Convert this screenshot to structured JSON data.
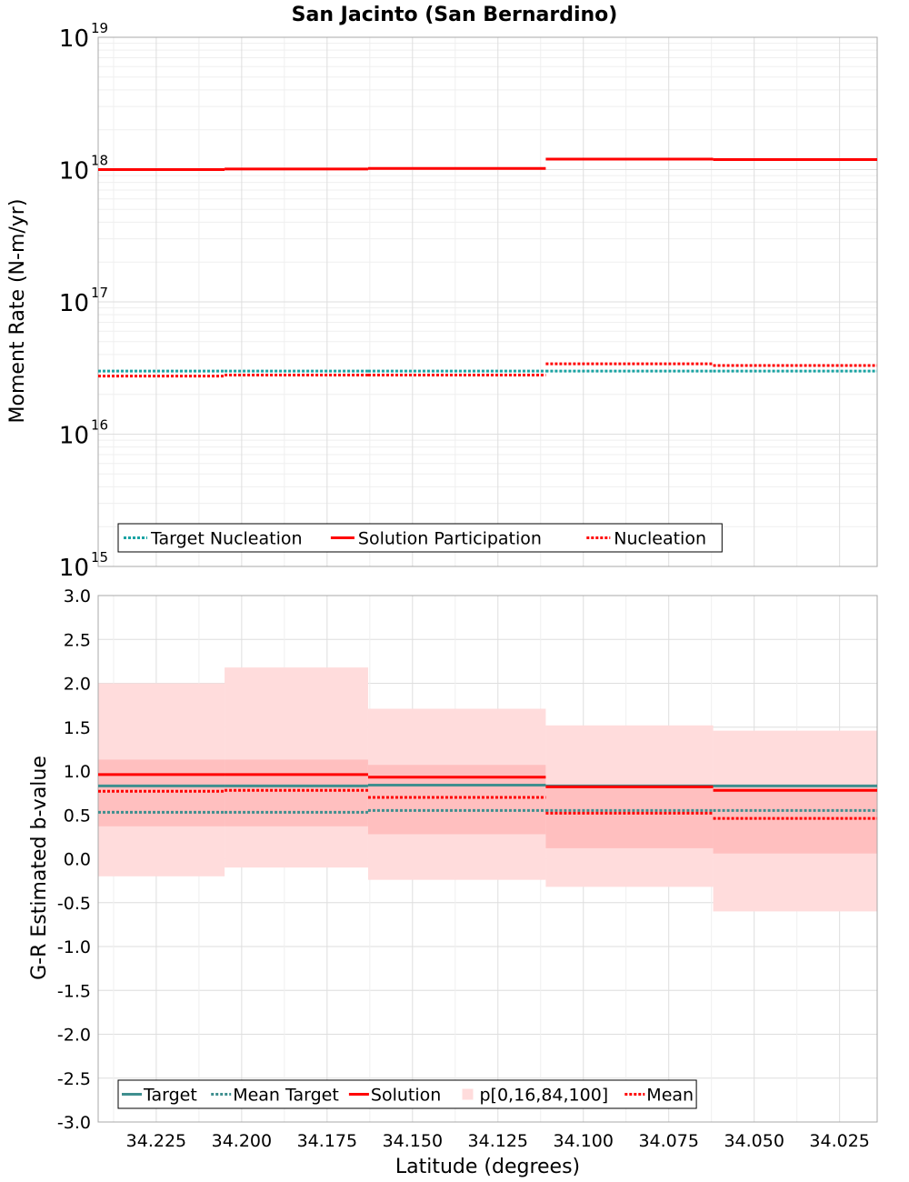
{
  "title": "San Jacinto (San Bernardino)",
  "colors": {
    "target": "#1aa3a3",
    "target_dark": "#3f8f8f",
    "solution": "#ff0000",
    "band_outer": "#ffdcdc",
    "band_inner": "#ffbfbf",
    "grid_major": "#dedede",
    "grid_minor": "#efefef",
    "frame": "#a8a8a8"
  },
  "chart_data": [
    {
      "type": "line",
      "panel": "top",
      "xlabel": "Latitude (degrees)",
      "ylabel": "Moment Rate (N-m/yr)",
      "xlim": [
        34.242,
        34.014
      ],
      "x_reversed": true,
      "x_ticks": [
        "34.225",
        "34.200",
        "34.175",
        "34.150",
        "34.125",
        "34.100",
        "34.075",
        "34.050",
        "34.025"
      ],
      "y_scale": "log",
      "ylim": [
        1000000000000000.0,
        1e+19
      ],
      "y_tick_exponents": [
        15,
        16,
        17,
        18,
        19
      ],
      "y_tick_base": "10",
      "grid": true,
      "legend_position": "bottom-left",
      "segments": [
        {
          "x0": 34.242,
          "x1": 34.205
        },
        {
          "x0": 34.205,
          "x1": 34.163
        },
        {
          "x0": 34.163,
          "x1": 34.111
        },
        {
          "x0": 34.111,
          "x1": 34.062
        },
        {
          "x0": 34.062,
          "x1": 34.014
        }
      ],
      "series": [
        {
          "name": "Target Nucleation",
          "style": "dotted",
          "color": "#1aa3a3",
          "values": [
            3e+16,
            3e+16,
            3e+16,
            3e+16,
            3e+16
          ]
        },
        {
          "name": "Solution Participation",
          "style": "solid",
          "color": "#ff0000",
          "values": [
            1e+18,
            1.01e+18,
            1.02e+18,
            1.2e+18,
            1.19e+18
          ]
        },
        {
          "name": "Nucleation",
          "style": "dotted",
          "color": "#ff0000",
          "values": [
            2.75e+16,
            2.8e+16,
            2.8e+16,
            3.4e+16,
            3.3e+16
          ]
        }
      ],
      "legend": [
        "Target Nucleation",
        "Solution Participation",
        "Nucleation"
      ]
    },
    {
      "type": "line",
      "panel": "bottom",
      "xlabel": "Latitude (degrees)",
      "ylabel": "G-R Estimated b-value",
      "xlim": [
        34.242,
        34.014
      ],
      "x_reversed": true,
      "x_ticks": [
        "34.225",
        "34.200",
        "34.175",
        "34.150",
        "34.125",
        "34.100",
        "34.075",
        "34.050",
        "34.025"
      ],
      "ylim": [
        -3.0,
        3.0
      ],
      "y_ticks": [
        "3.0",
        "2.5",
        "2.0",
        "1.5",
        "1.0",
        "0.5",
        "0.0",
        "-0.5",
        "-1.0",
        "-1.5",
        "-2.0",
        "-2.5",
        "-3.0"
      ],
      "grid": true,
      "legend_position": "bottom-left",
      "segments": [
        {
          "x0": 34.242,
          "x1": 34.205
        },
        {
          "x0": 34.205,
          "x1": 34.163
        },
        {
          "x0": 34.163,
          "x1": 34.111
        },
        {
          "x0": 34.111,
          "x1": 34.062
        },
        {
          "x0": 34.062,
          "x1": 34.014
        }
      ],
      "bands": {
        "name": "p[0,16,84,100]",
        "p0": [
          -0.2,
          -0.1,
          -0.24,
          -0.32,
          -0.6
        ],
        "p16": [
          0.37,
          0.37,
          0.28,
          0.12,
          0.06
        ],
        "p84": [
          1.13,
          1.13,
          1.07,
          0.84,
          0.81
        ],
        "p100": [
          2.0,
          2.18,
          1.71,
          1.52,
          1.46
        ]
      },
      "series": [
        {
          "name": "Target",
          "style": "solid",
          "color": "#3f8f8f",
          "values": [
            0.83,
            0.83,
            0.84,
            0.83,
            0.83
          ]
        },
        {
          "name": "Mean Target",
          "style": "dotted",
          "color": "#3f8f8f",
          "values": [
            0.53,
            0.53,
            0.55,
            0.55,
            0.55
          ]
        },
        {
          "name": "Solution",
          "style": "solid",
          "color": "#ff0000",
          "values": [
            0.96,
            0.96,
            0.93,
            0.82,
            0.78
          ]
        },
        {
          "name": "Mean",
          "style": "dotted",
          "color": "#ff0000",
          "values": [
            0.77,
            0.78,
            0.7,
            0.52,
            0.46
          ]
        }
      ],
      "legend": [
        "Target",
        "Mean Target",
        "Solution",
        "p[0,16,84,100]",
        "Mean"
      ]
    }
  ]
}
